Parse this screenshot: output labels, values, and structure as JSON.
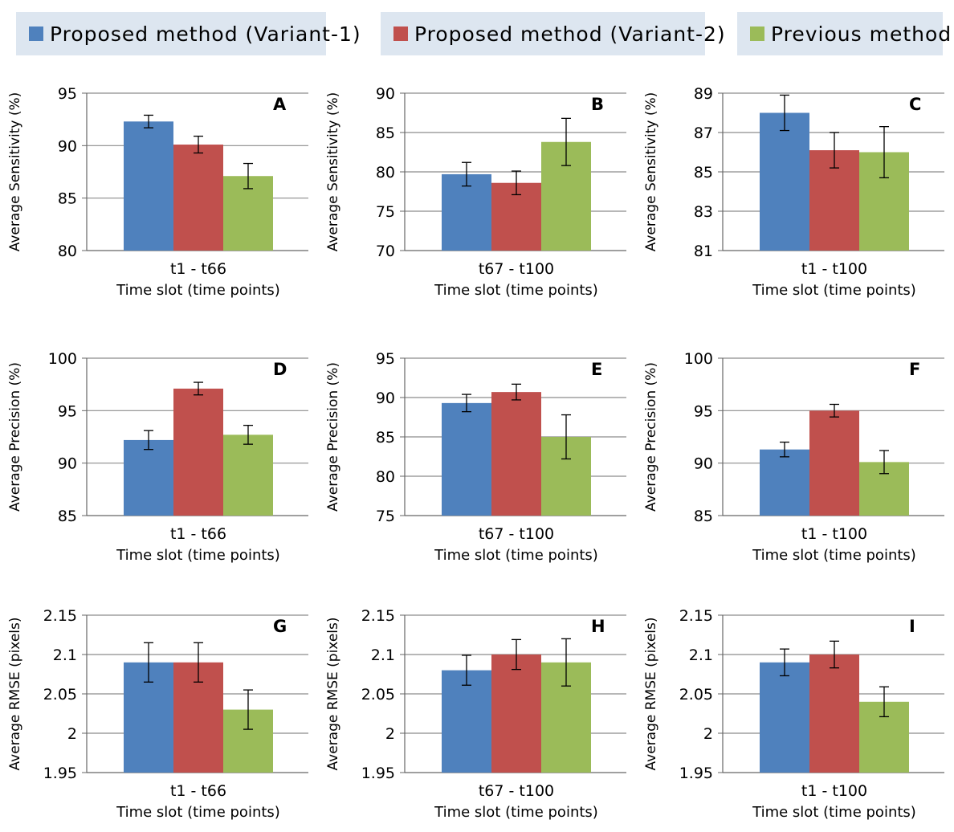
{
  "legend": [
    {
      "label": "Proposed method (Variant-1)",
      "color": "#4f81bd"
    },
    {
      "label": "Proposed method  (Variant-2)",
      "color": "#c0504d"
    },
    {
      "label": "Previous method",
      "color": "#9bbb59"
    }
  ],
  "chart_data": [
    {
      "type": "bar",
      "panel": "A",
      "category": "t1 - t66",
      "xlabel": "Time slot (time points)",
      "ylabel": "Average Sensitivity (%)",
      "ylim": [
        80,
        95
      ],
      "yticks": [
        "80",
        "85",
        "90",
        "95"
      ],
      "values": [
        92.3,
        90.1,
        87.1
      ],
      "errors": [
        0.6,
        0.8,
        1.2
      ]
    },
    {
      "type": "bar",
      "panel": "B",
      "category": "t67 - t100",
      "xlabel": "Time slot (time points)",
      "ylabel": "Average Sensitivity (%)",
      "ylim": [
        70,
        90
      ],
      "yticks": [
        "70",
        "75",
        "80",
        "85",
        "90"
      ],
      "values": [
        79.7,
        78.6,
        83.8
      ],
      "errors": [
        1.5,
        1.5,
        3.0
      ]
    },
    {
      "type": "bar",
      "panel": "C",
      "category": "t1 - t100",
      "xlabel": "Time slot (time points)",
      "ylabel": "Average Sensitivity (%)",
      "ylim": [
        81,
        89
      ],
      "yticks": [
        "81",
        "83",
        "85",
        "87",
        "89"
      ],
      "values": [
        88.0,
        86.1,
        86.0
      ],
      "errors": [
        0.9,
        0.9,
        1.3
      ]
    },
    {
      "type": "bar",
      "panel": "D",
      "category": "t1 - t66",
      "xlabel": "Time slot (time points)",
      "ylabel": "Average Precision (%)",
      "ylim": [
        85,
        100
      ],
      "yticks": [
        "85",
        "90",
        "95",
        "100"
      ],
      "values": [
        92.2,
        97.1,
        92.7
      ],
      "errors": [
        0.9,
        0.6,
        0.9
      ]
    },
    {
      "type": "bar",
      "panel": "E",
      "category": "t67 - t100",
      "xlabel": "Time slot (time points)",
      "ylabel": "Average Precision (%)",
      "ylim": [
        75,
        95
      ],
      "yticks": [
        "75",
        "80",
        "85",
        "90",
        "95"
      ],
      "values": [
        89.3,
        90.7,
        85.0
      ],
      "errors": [
        1.1,
        1.0,
        2.8
      ]
    },
    {
      "type": "bar",
      "panel": "F",
      "category": "t1 - t100",
      "xlabel": "Time slot (time points)",
      "ylabel": "Average Precision (%)",
      "ylim": [
        85,
        100
      ],
      "yticks": [
        "85",
        "90",
        "95",
        "100"
      ],
      "values": [
        91.3,
        95.0,
        90.1
      ],
      "errors": [
        0.7,
        0.6,
        1.1
      ]
    },
    {
      "type": "bar",
      "panel": "G",
      "category": "t1 - t66",
      "xlabel": "Time slot (time points)",
      "ylabel": "Average RMSE  (pixels)",
      "ylim": [
        1.95,
        2.15
      ],
      "yticks": [
        "1.95",
        "2",
        "2.05",
        "2.1",
        "2.15"
      ],
      "values": [
        2.09,
        2.09,
        2.03
      ],
      "errors": [
        0.025,
        0.025,
        0.025
      ]
    },
    {
      "type": "bar",
      "panel": "H",
      "category": "t67 - t100",
      "xlabel": "Time slot (time points)",
      "ylabel": "Average RMSE  (pixels)",
      "ylim": [
        1.95,
        2.15
      ],
      "yticks": [
        "1.95",
        "2",
        "2.05",
        "2.1",
        "2.15"
      ],
      "values": [
        2.08,
        2.1,
        2.09
      ],
      "errors": [
        0.019,
        0.019,
        0.03
      ]
    },
    {
      "type": "bar",
      "panel": "I",
      "category": "t1 - t100",
      "xlabel": "Time slot (time points)",
      "ylabel": "Average RMSE  (pixels)",
      "ylim": [
        1.95,
        2.15
      ],
      "yticks": [
        "1.95",
        "2",
        "2.05",
        "2.1",
        "2.15"
      ],
      "values": [
        2.09,
        2.1,
        2.04
      ],
      "errors": [
        0.017,
        0.017,
        0.019
      ]
    }
  ]
}
